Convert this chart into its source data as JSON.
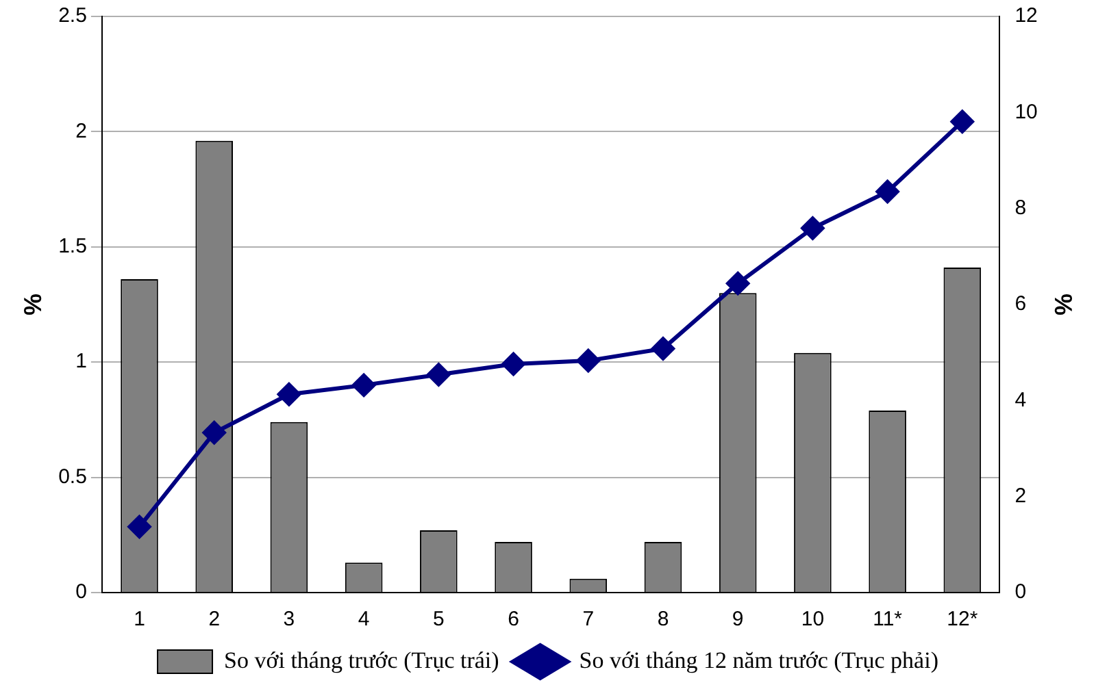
{
  "chart_data": {
    "type": "bar",
    "categories": [
      "1",
      "2",
      "3",
      "4",
      "5",
      "6",
      "7",
      "8",
      "9",
      "10",
      "11*",
      "12*"
    ],
    "series": [
      {
        "name": "So với tháng trước (Trục trái)",
        "color": "#808080",
        "values": [
          1.36,
          1.96,
          0.74,
          0.13,
          0.27,
          0.22,
          0.06,
          0.22,
          1.3,
          1.04,
          0.79,
          1.41
        ]
      },
      {
        "name": "So với tháng 12 năm trước (Trục phải)",
        "type": "line",
        "axis": "y2",
        "color": "#000080",
        "marker": "diamond",
        "values": [
          1.37,
          3.33,
          4.13,
          4.32,
          4.54,
          4.76,
          4.83,
          5.08,
          6.44,
          7.59,
          8.35,
          9.81
        ]
      }
    ],
    "ylabel": "%",
    "y2label": "%",
    "ylim": [
      0,
      2.5
    ],
    "yticks": [
      0,
      0.5,
      1,
      1.5,
      2,
      2.5
    ],
    "y2lim": [
      0,
      12
    ],
    "y2ticks": [
      0,
      2,
      4,
      6,
      8,
      10,
      12
    ],
    "grid": "y",
    "legend": "bottom"
  }
}
